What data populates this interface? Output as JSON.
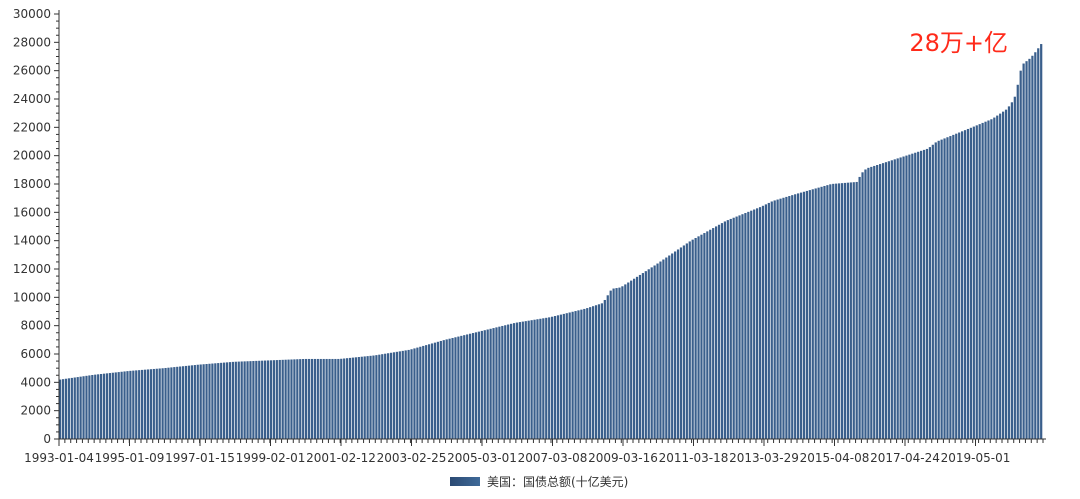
{
  "chart_data": {
    "type": "bar",
    "title": "",
    "xlabel": "",
    "ylabel": "",
    "ylim": [
      0,
      30000
    ],
    "y_ticks": [
      0,
      2000,
      4000,
      6000,
      8000,
      10000,
      12000,
      14000,
      16000,
      18000,
      20000,
      22000,
      24000,
      26000,
      28000,
      30000
    ],
    "x_tick_labels": [
      "1993-01-04",
      "1995-01-09",
      "1997-01-15",
      "1999-02-01",
      "2001-02-12",
      "2003-02-25",
      "2005-03-01",
      "2007-03-08",
      "2009-03-16",
      "2011-03-18",
      "2013-03-29",
      "2015-04-08",
      "2017-04-24",
      "2019-05-01"
    ],
    "x_range": [
      "1993-01-04",
      "2021-01-04"
    ],
    "grid": false,
    "legend_position": "bottom-center",
    "colors": {
      "bar": "#3a5f8c",
      "bar_dark": "#2b4a73",
      "annotation": "#ff2a1a",
      "axis": "#333333"
    },
    "series": [
      {
        "name": "美国：国债总额(十亿美元)",
        "points": [
          [
            "1993-01-04",
            4180
          ],
          [
            "1994-01-01",
            4530
          ],
          [
            "1995-01-01",
            4800
          ],
          [
            "1996-01-01",
            5000
          ],
          [
            "1997-01-01",
            5250
          ],
          [
            "1998-01-01",
            5450
          ],
          [
            "1999-01-01",
            5550
          ],
          [
            "2000-01-01",
            5650
          ],
          [
            "2001-01-01",
            5650
          ],
          [
            "2002-01-01",
            5900
          ],
          [
            "2003-01-01",
            6300
          ],
          [
            "2004-01-01",
            7000
          ],
          [
            "2005-01-01",
            7600
          ],
          [
            "2006-01-01",
            8200
          ],
          [
            "2007-01-01",
            8600
          ],
          [
            "2008-01-01",
            9200
          ],
          [
            "2008-07-01",
            9600
          ],
          [
            "2008-10-01",
            10600
          ],
          [
            "2009-01-01",
            10700
          ],
          [
            "2010-01-01",
            12300
          ],
          [
            "2011-01-01",
            14000
          ],
          [
            "2012-01-01",
            15400
          ],
          [
            "2013-01-01",
            16400
          ],
          [
            "2013-05-01",
            16800
          ],
          [
            "2014-01-01",
            17300
          ],
          [
            "2015-01-01",
            18000
          ],
          [
            "2015-10-01",
            18150
          ],
          [
            "2015-11-01",
            18700
          ],
          [
            "2016-01-01",
            19100
          ],
          [
            "2017-01-01",
            19900
          ],
          [
            "2017-10-01",
            20500
          ],
          [
            "2018-01-01",
            21000
          ],
          [
            "2019-01-01",
            22000
          ],
          [
            "2019-08-01",
            22600
          ],
          [
            "2020-01-01",
            23300
          ],
          [
            "2020-03-15",
            24000
          ],
          [
            "2020-05-01",
            25300
          ],
          [
            "2020-06-01",
            26400
          ],
          [
            "2020-09-01",
            26900
          ],
          [
            "2020-11-01",
            27400
          ],
          [
            "2021-01-01",
            28000
          ]
        ]
      }
    ],
    "annotations": [
      {
        "text": "28万+亿",
        "position": "top-right"
      }
    ]
  }
}
